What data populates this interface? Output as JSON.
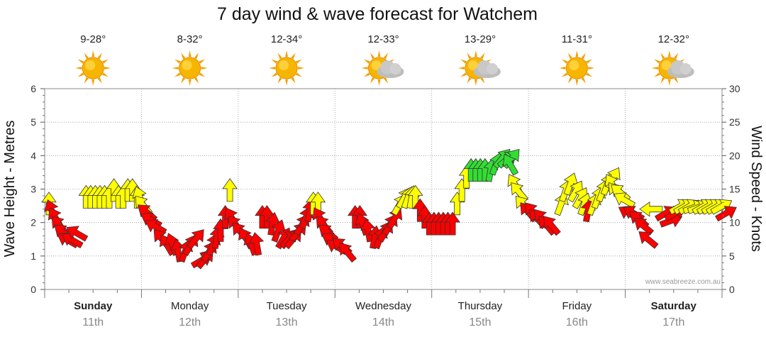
{
  "title": "7 day wind & wave forecast for Watchem",
  "credit": "www.seabreeze.com.au",
  "days": [
    {
      "name": "Sunday",
      "date": "11th",
      "temp": "9-28°",
      "weather": "sun-icon",
      "bold": true
    },
    {
      "name": "Monday",
      "date": "12th",
      "temp": "8-32°",
      "weather": "sun-icon",
      "bold": false
    },
    {
      "name": "Tuesday",
      "date": "13th",
      "temp": "12-34°",
      "weather": "sun-icon",
      "bold": false
    },
    {
      "name": "Wednesday",
      "date": "14th",
      "temp": "12-33°",
      "weather": "partly-cloudy-icon",
      "bold": false
    },
    {
      "name": "Thursday",
      "date": "15th",
      "temp": "13-29°",
      "weather": "partly-cloudy-icon",
      "bold": false
    },
    {
      "name": "Friday",
      "date": "16th",
      "temp": "11-31°",
      "weather": "sun-icon",
      "bold": false
    },
    {
      "name": "Saturday",
      "date": "17th",
      "temp": "12-32°",
      "weather": "partly-cloudy-icon",
      "bold": true
    }
  ],
  "colors": {
    "low": "#ff0000",
    "mid": "#ffff00",
    "high": "#33dd33",
    "grid": "#999999"
  },
  "chart_data": {
    "type": "scatter",
    "title": "7 day wind & wave forecast for Watchem",
    "left_axis": {
      "label": "Wave Height - Metres",
      "min": 0,
      "max": 6,
      "ticks": [
        "0",
        "1",
        "2",
        "3",
        "4",
        "5",
        "6"
      ]
    },
    "right_axis": {
      "label": "Wind Speed - Knots",
      "min": 0,
      "max": 30,
      "ticks": [
        "0",
        "5",
        "10",
        "15",
        "20",
        "25",
        "30"
      ]
    },
    "x_unit": "hours from Sunday 00:00",
    "series": [
      {
        "wind_knots": [
          12,
          11,
          10,
          9,
          8,
          7,
          7,
          8,
          13,
          13,
          13,
          13,
          13,
          13,
          14,
          13,
          13,
          14,
          14,
          13,
          13,
          12,
          11,
          10,
          9,
          7,
          6,
          6,
          5,
          5,
          6,
          7,
          4,
          4,
          5,
          6,
          7,
          8,
          10,
          14,
          10,
          9,
          8,
          7,
          6,
          6,
          10,
          10,
          9,
          8,
          7,
          7,
          7,
          8,
          9,
          10,
          11,
          12,
          12,
          10,
          9,
          8,
          7,
          6,
          6,
          5,
          10,
          10,
          9,
          8,
          7,
          7,
          8,
          9,
          10,
          12,
          13,
          13,
          13,
          13,
          11,
          10,
          9,
          9,
          9,
          9,
          9,
          9,
          12,
          14,
          16,
          17,
          17,
          17,
          17,
          17,
          18,
          19,
          19,
          19,
          18,
          15,
          14,
          12,
          11,
          11,
          10,
          10,
          9,
          9,
          12,
          14,
          15,
          14,
          13,
          12,
          11,
          12,
          13,
          14,
          15,
          16,
          15,
          14,
          14,
          13,
          11,
          11,
          10,
          9,
          7,
          12,
          11,
          10,
          11,
          12,
          12,
          12,
          12,
          12,
          12,
          12,
          12,
          12,
          12,
          11
        ],
        "wind_dir_deg": [
          0,
          340,
          330,
          320,
          310,
          300,
          300,
          300,
          0,
          0,
          0,
          0,
          0,
          0,
          0,
          0,
          0,
          0,
          0,
          0,
          340,
          320,
          310,
          300,
          300,
          320,
          330,
          340,
          350,
          20,
          30,
          40,
          60,
          40,
          30,
          20,
          10,
          0,
          0,
          0,
          330,
          320,
          320,
          330,
          340,
          350,
          0,
          0,
          10,
          20,
          30,
          40,
          40,
          40,
          30,
          20,
          10,
          0,
          0,
          330,
          320,
          310,
          300,
          300,
          310,
          320,
          0,
          0,
          340,
          350,
          10,
          20,
          30,
          30,
          30,
          30,
          30,
          20,
          10,
          0,
          0,
          0,
          0,
          0,
          0,
          0,
          0,
          0,
          0,
          0,
          0,
          0,
          0,
          0,
          0,
          10,
          20,
          40,
          50,
          40,
          330,
          330,
          320,
          320,
          320,
          320,
          320,
          320,
          320,
          320,
          20,
          20,
          20,
          30,
          30,
          20,
          10,
          20,
          20,
          20,
          20,
          30,
          330,
          320,
          310,
          300,
          300,
          300,
          310,
          310,
          310,
          270,
          60,
          70,
          60,
          60,
          60,
          60,
          70,
          70,
          60,
          60,
          60,
          60,
          60,
          60
        ]
      }
    ],
    "legend": "none",
    "grid": true
  }
}
